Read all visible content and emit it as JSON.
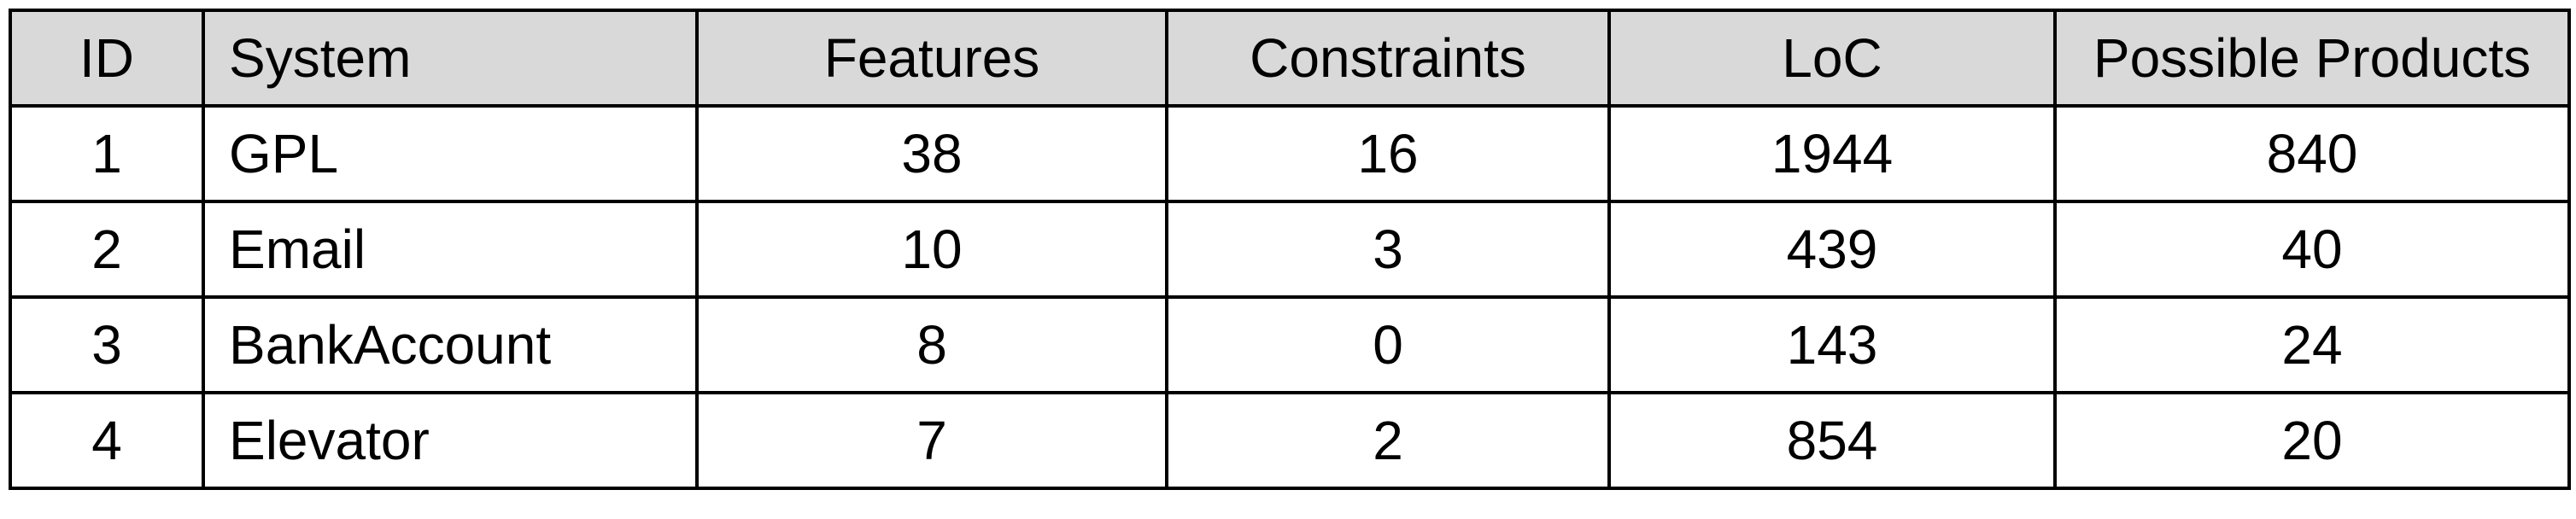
{
  "table": {
    "headers": {
      "id": "ID",
      "system": "System",
      "features": "Features",
      "constraints": "Constraints",
      "loc": "LoC",
      "products": "Possible Products"
    },
    "rows": [
      {
        "id": "1",
        "system": "GPL",
        "features": "38",
        "constraints": "16",
        "loc": "1944",
        "products": "840"
      },
      {
        "id": "2",
        "system": "Email",
        "features": "10",
        "constraints": "3",
        "loc": "439",
        "products": "40"
      },
      {
        "id": "3",
        "system": "BankAccount",
        "features": "8",
        "constraints": "0",
        "loc": "143",
        "products": "24"
      },
      {
        "id": "4",
        "system": "Elevator",
        "features": "7",
        "constraints": "2",
        "loc": "854",
        "products": "20"
      }
    ],
    "header_background": "#d9d9d9",
    "border_color": "#000000"
  }
}
